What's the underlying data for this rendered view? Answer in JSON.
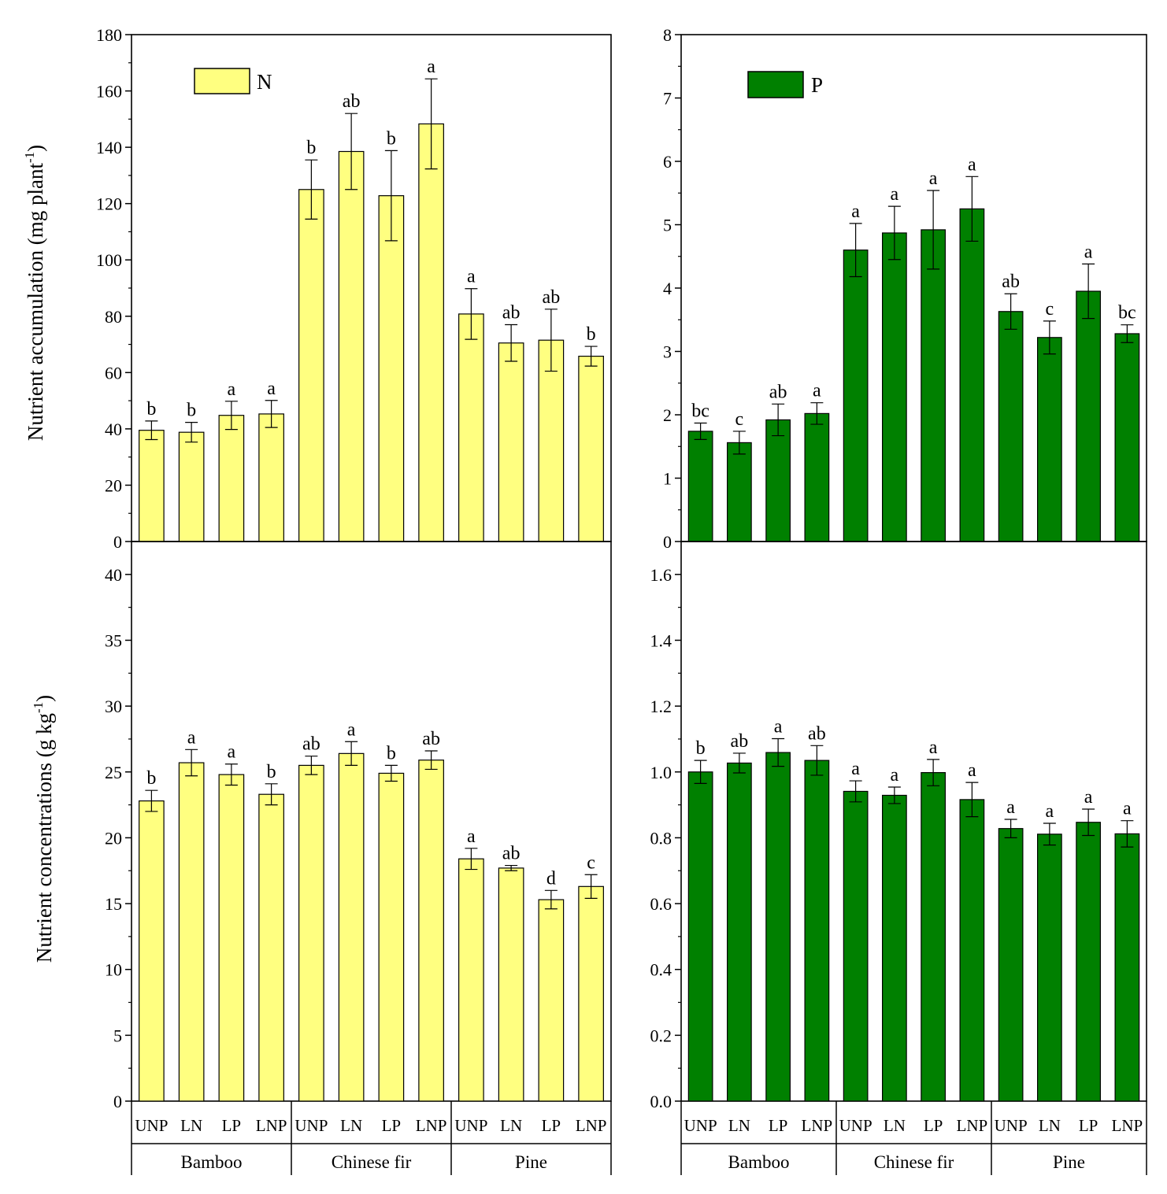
{
  "figure": {
    "groups": [
      "Bamboo",
      "Chinese fir",
      "Pine"
    ],
    "treatments": [
      "UNP",
      "LN",
      "LP",
      "LNP"
    ],
    "ylabel_top": "Nutrient accumulation (mg plant",
    "ylabel_top_sup": "-1",
    "ylabel_top_close": ")",
    "ylabel_bottom": "Nutrient concentrations (g kg",
    "ylabel_bottom_sup": "-1",
    "ylabel_bottom_close": ")"
  },
  "colors": {
    "N": "#ffff80",
    "P": "#008000",
    "axis": "#000000"
  },
  "chart_data": [
    {
      "id": "n-accumulation",
      "type": "bar",
      "legend": "N",
      "color_key": "N",
      "categories": [
        "UNP",
        "LN",
        "LP",
        "LNP",
        "UNP",
        "LN",
        "LP",
        "LNP",
        "UNP",
        "LN",
        "LP",
        "LNP"
      ],
      "values": [
        39.5,
        38.8,
        44.8,
        45.3,
        125.0,
        138.5,
        122.8,
        148.3,
        80.8,
        70.5,
        71.5,
        65.8
      ],
      "errors": [
        3.3,
        3.5,
        5.0,
        4.8,
        10.5,
        13.5,
        16.0,
        16.0,
        9.0,
        6.5,
        11.0,
        3.5
      ],
      "labels": [
        "b",
        "b",
        "a",
        "a",
        "b",
        "ab",
        "b",
        "a",
        "a",
        "ab",
        "ab",
        "b"
      ],
      "ylim": [
        0,
        180
      ],
      "yticks": [
        0,
        20,
        40,
        60,
        80,
        100,
        120,
        140,
        160,
        180
      ],
      "ytick_labels": [
        "0",
        "20",
        "40",
        "60",
        "80",
        "100",
        "120",
        "140",
        "160",
        "180"
      ]
    },
    {
      "id": "p-accumulation",
      "type": "bar",
      "legend": "P",
      "color_key": "P",
      "categories": [
        "UNP",
        "LN",
        "LP",
        "LNP",
        "UNP",
        "LN",
        "LP",
        "LNP",
        "UNP",
        "LN",
        "LP",
        "LNP"
      ],
      "values": [
        1.74,
        1.56,
        1.92,
        2.02,
        4.6,
        4.87,
        4.92,
        5.25,
        3.63,
        3.22,
        3.95,
        3.28
      ],
      "errors": [
        0.13,
        0.18,
        0.25,
        0.17,
        0.42,
        0.42,
        0.62,
        0.51,
        0.28,
        0.26,
        0.43,
        0.14
      ],
      "labels": [
        "bc",
        "c",
        "ab",
        "a",
        "a",
        "a",
        "a",
        "a",
        "ab",
        "c",
        "a",
        "bc"
      ],
      "ylim": [
        0,
        8
      ],
      "yticks": [
        0,
        1,
        2,
        3,
        4,
        5,
        6,
        7,
        8
      ],
      "ytick_labels": [
        "0",
        "1",
        "2",
        "3",
        "4",
        "5",
        "6",
        "7",
        "8"
      ]
    },
    {
      "id": "n-concentration",
      "type": "bar",
      "color_key": "N",
      "categories": [
        "UNP",
        "LN",
        "LP",
        "LNP",
        "UNP",
        "LN",
        "LP",
        "LNP",
        "UNP",
        "LN",
        "LP",
        "LNP"
      ],
      "values": [
        22.8,
        25.7,
        24.8,
        23.3,
        25.5,
        26.4,
        24.9,
        25.9,
        18.4,
        17.7,
        15.3,
        16.3
      ],
      "errors": [
        0.8,
        1.0,
        0.8,
        0.8,
        0.7,
        0.9,
        0.6,
        0.7,
        0.8,
        0.2,
        0.7,
        0.9
      ],
      "labels": [
        "b",
        "a",
        "a",
        "b",
        "ab",
        "a",
        "b",
        "ab",
        "a",
        "ab",
        "d",
        "c"
      ],
      "ylim": [
        0,
        42.5
      ],
      "yticks": [
        0,
        5,
        10,
        15,
        20,
        25,
        30,
        35,
        40
      ],
      "ytick_labels": [
        "0",
        "5",
        "10",
        "15",
        "20",
        "25",
        "30",
        "35",
        "40"
      ]
    },
    {
      "id": "p-concentration",
      "type": "bar",
      "color_key": "P",
      "categories": [
        "UNP",
        "LN",
        "LP",
        "LNP",
        "UNP",
        "LN",
        "LP",
        "LNP",
        "UNP",
        "LN",
        "LP",
        "LNP"
      ],
      "values": [
        1.0,
        1.027,
        1.059,
        1.035,
        0.941,
        0.929,
        0.998,
        0.916,
        0.828,
        0.811,
        0.847,
        0.812
      ],
      "errors": [
        0.035,
        0.03,
        0.042,
        0.045,
        0.032,
        0.025,
        0.04,
        0.052,
        0.028,
        0.033,
        0.04,
        0.04
      ],
      "labels": [
        "b",
        "ab",
        "a",
        "ab",
        "a",
        "a",
        "a",
        "a",
        "a",
        "a",
        "a",
        "a"
      ],
      "ylim": [
        0,
        1.7
      ],
      "yticks": [
        0.0,
        0.2,
        0.4,
        0.6,
        0.8,
        1.0,
        1.2,
        1.4,
        1.6
      ],
      "ytick_labels": [
        "0.0",
        "0.2",
        "0.4",
        "0.6",
        "0.8",
        "1.0",
        "1.2",
        "1.4",
        "1.6"
      ]
    }
  ]
}
